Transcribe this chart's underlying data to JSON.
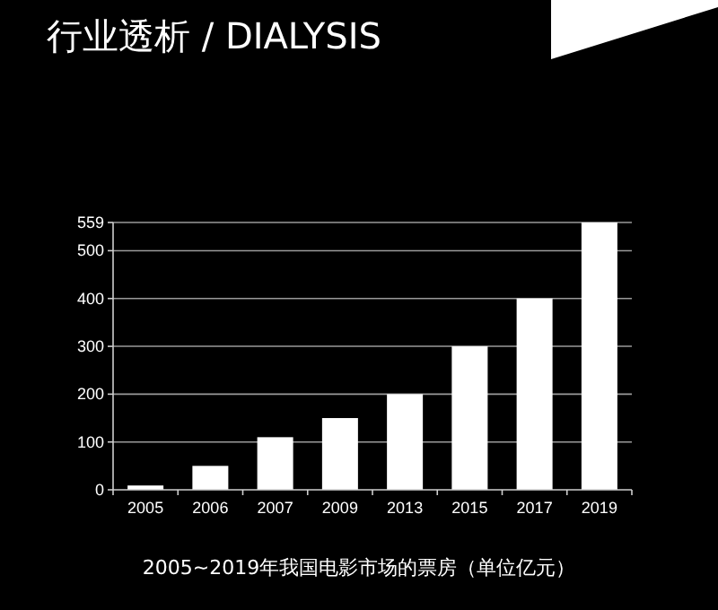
{
  "chart_data": {
    "type": "bar",
    "title": "行业透析 / DIALYSIS",
    "categories": [
      "2005",
      "2006",
      "2007",
      "2009",
      "2013",
      "2015",
      "2017",
      "2019"
    ],
    "values": [
      9,
      50,
      110,
      150,
      200,
      300,
      400,
      559
    ],
    "color": "#ffffff",
    "ylim": [
      0,
      559
    ],
    "yticks": [
      0,
      100,
      200,
      300,
      400,
      500,
      559
    ],
    "grid": "y",
    "annotations": [
      "2005~2019年我国电影市场的票房（单位亿元）"
    ]
  }
}
